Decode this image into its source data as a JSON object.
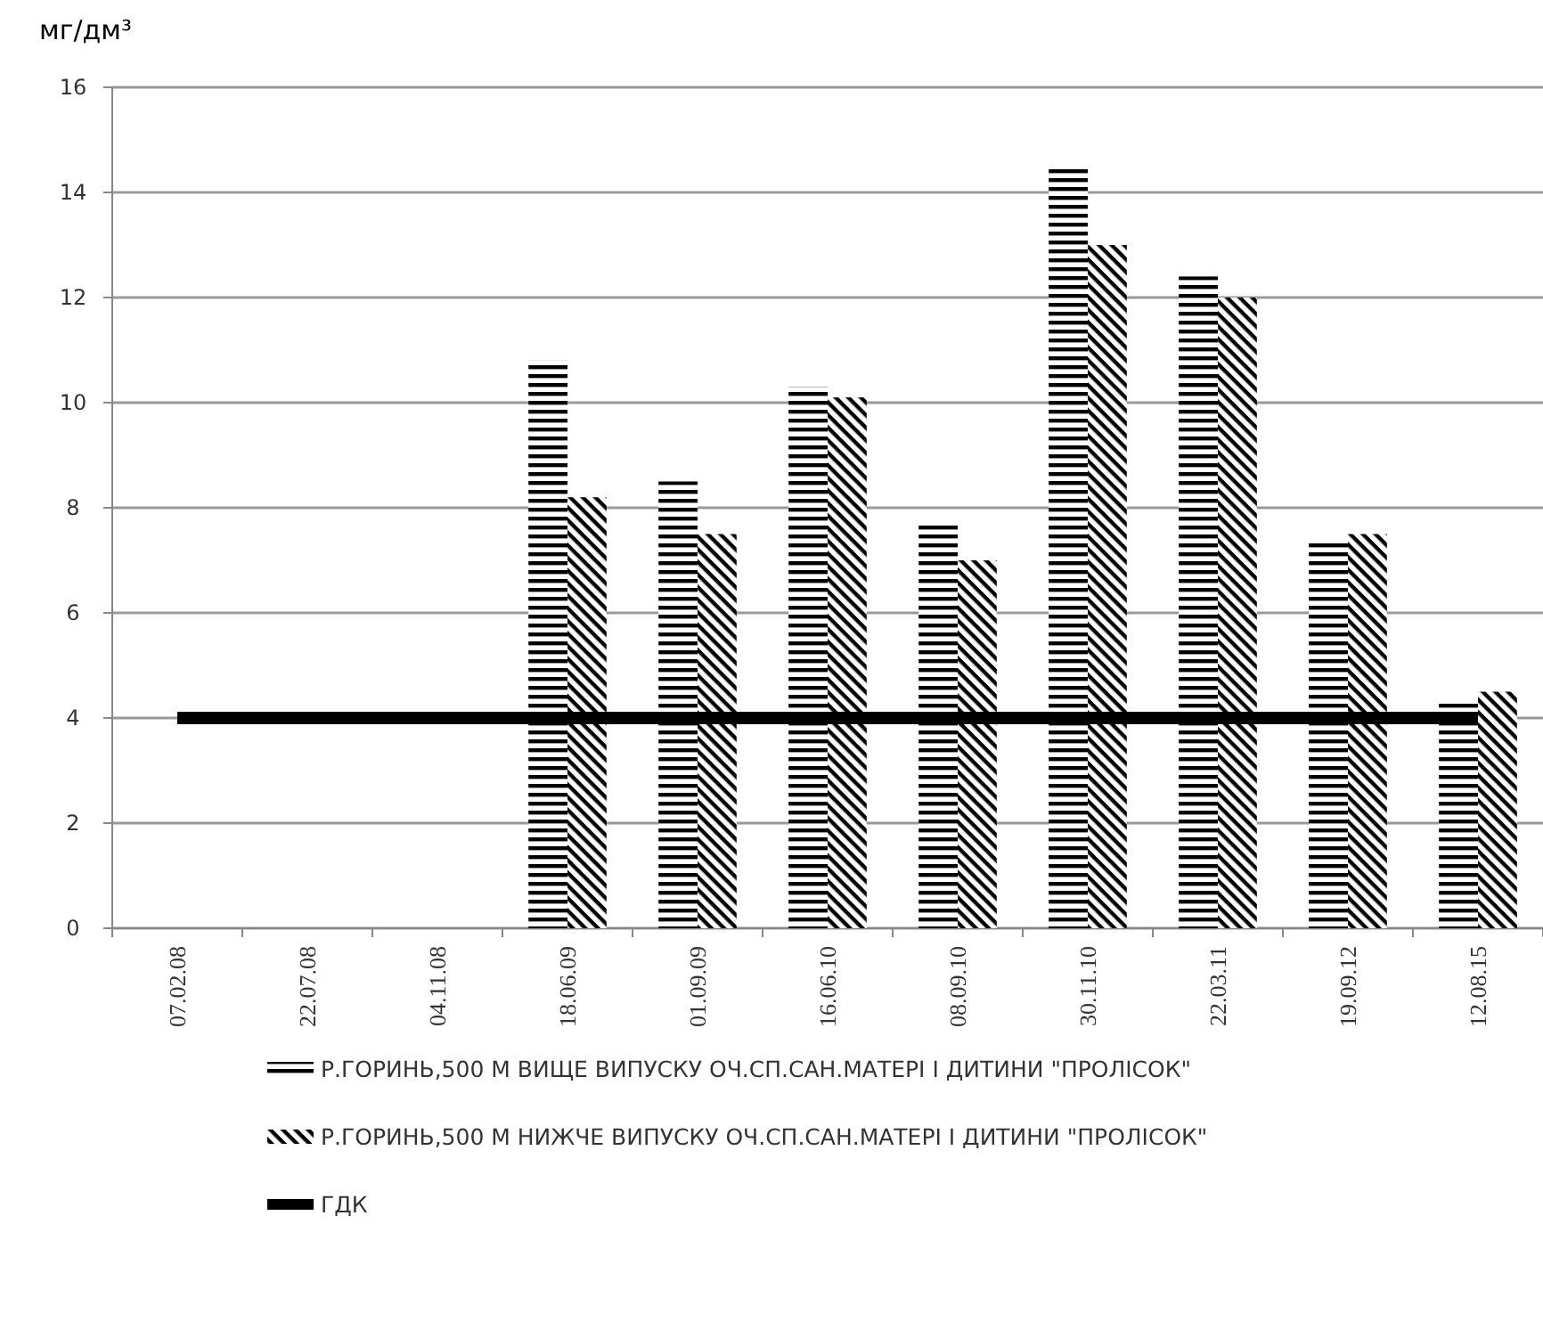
{
  "chart_data": {
    "type": "bar",
    "ylabel": "мг/дм³",
    "categories": [
      "07.02.08",
      "22.07.08",
      "04.11.08",
      "18.06.09",
      "01.09.09",
      "16.06.10",
      "08.09.10",
      "30.11.10",
      "22.03.11",
      "19.09.12",
      "12.08.15"
    ],
    "series": [
      {
        "name": "Р.ГОРИНЬ,500 М ВИЩЕ ВИПУСКУ ОЧ.СП.САН.МАТЕРІ І ДИТИНИ \"ПРОЛІСОК\"",
        "color": "#000000",
        "values": [
          null,
          null,
          null,
          10.8,
          8.5,
          10.3,
          7.7,
          14.5,
          12.4,
          7.4,
          4.3
        ]
      },
      {
        "name": "Р.ГОРИНЬ,500 М НИЖЧЕ ВИПУСКУ ОЧ.СП.САН.МАТЕРІ І ДИТИНИ \"ПРОЛІСОК\"",
        "color": "#000000",
        "values": [
          null,
          null,
          null,
          8.2,
          7.5,
          10.1,
          7.0,
          13.0,
          12.0,
          7.5,
          4.5
        ]
      },
      {
        "name": "ГДК",
        "type": "line",
        "color": "#000000",
        "values": [
          4,
          4,
          4,
          4,
          4,
          4,
          4,
          4,
          4,
          4,
          4
        ]
      }
    ],
    "ylim": [
      0,
      16
    ],
    "yticks": [
      0,
      2,
      4,
      6,
      8,
      10,
      12,
      14,
      16
    ],
    "grid": "y",
    "legend": "bottom"
  }
}
